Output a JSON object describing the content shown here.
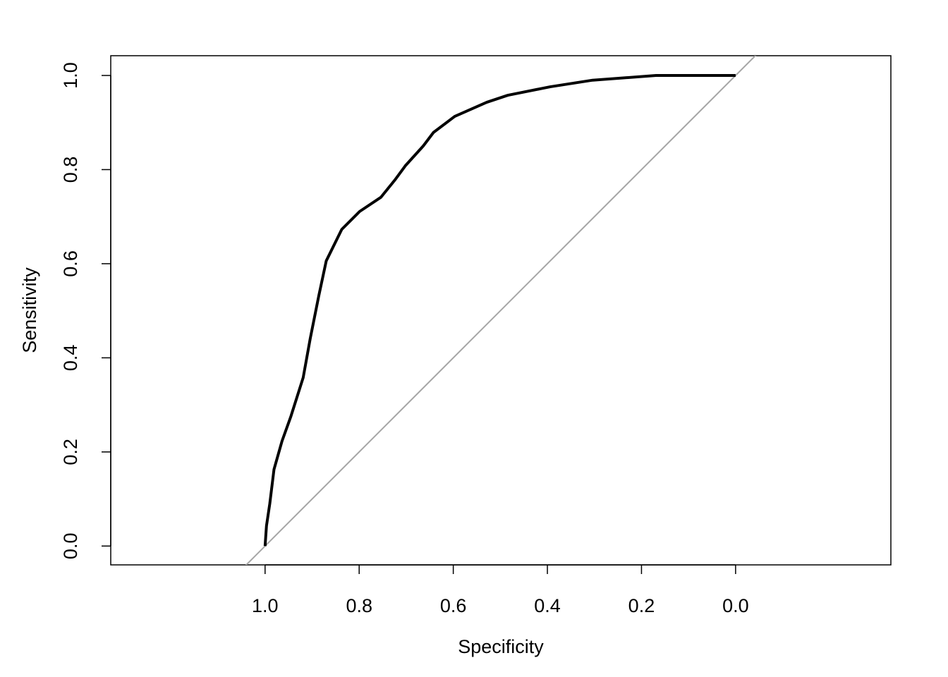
{
  "chart_data": {
    "type": "line",
    "x_label": "Specificity",
    "y_label": "Sensitivity",
    "x": [
      1.0,
      0.997,
      0.99,
      0.981,
      0.964,
      0.945,
      0.919,
      0.904,
      0.886,
      0.87,
      0.837,
      0.799,
      0.754,
      0.724,
      0.702,
      0.664,
      0.642,
      0.597,
      0.529,
      0.484,
      0.394,
      0.304,
      0.169,
      0.0
    ],
    "values": [
      0.0,
      0.043,
      0.09,
      0.163,
      0.223,
      0.276,
      0.358,
      0.441,
      0.531,
      0.606,
      0.673,
      0.711,
      0.741,
      0.778,
      0.808,
      0.85,
      0.879,
      0.913,
      0.943,
      0.958,
      0.976,
      0.99,
      1.0,
      1.0
    ],
    "color": "#000000",
    "reference_color": "#a6a6a6",
    "xlim": [
      1.328,
      -0.33
    ],
    "ylim": [
      -0.04,
      1.042
    ],
    "xticks": [
      {
        "value": 1,
        "label": "1.0"
      },
      {
        "value": 0.8,
        "label": "0.8"
      },
      {
        "value": 0.6,
        "label": "0.6"
      },
      {
        "value": 0.4,
        "label": "0.4"
      },
      {
        "value": 0.2,
        "label": "0.2"
      },
      {
        "value": 0,
        "label": "0.0"
      }
    ],
    "yticks": [
      {
        "value": 0,
        "label": "0.0"
      },
      {
        "value": 0.2,
        "label": "0.2"
      },
      {
        "value": 0.4,
        "label": "0.4"
      },
      {
        "value": 0.6,
        "label": "0.6"
      },
      {
        "value": 0.8,
        "label": "0.8"
      },
      {
        "value": 1,
        "label": "1.0"
      }
    ]
  }
}
